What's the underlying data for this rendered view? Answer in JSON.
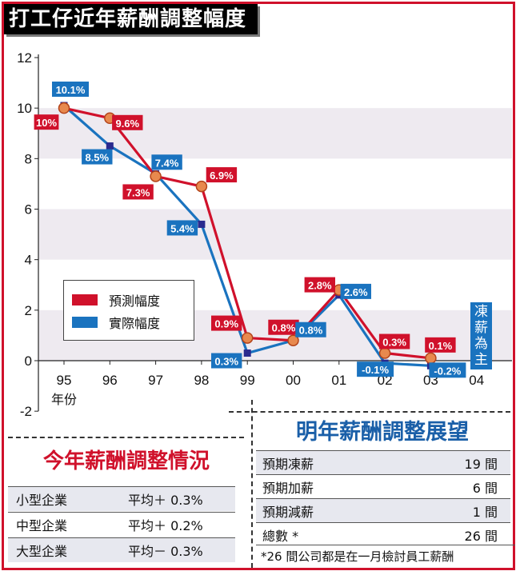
{
  "title": "打工仔近年薪酬調整幅度",
  "chart_data": {
    "type": "line",
    "categories": [
      "95",
      "96",
      "97",
      "98",
      "99",
      "00",
      "01",
      "02",
      "03",
      "04"
    ],
    "xlabel": "年份",
    "ylim": [
      -2,
      12
    ],
    "yticks": [
      -2,
      0,
      2,
      4,
      6,
      8,
      10,
      12
    ],
    "series": [
      {
        "name": "預測幅度",
        "color": "#d0112b",
        "values": [
          10,
          9.6,
          7.3,
          6.9,
          0.9,
          0.8,
          2.8,
          0.3,
          0.1,
          null
        ],
        "labels": [
          "10%",
          "9.6%",
          "7.3%",
          "6.9%",
          "0.9%",
          "0.8%",
          "2.8%",
          "0.3%",
          "0.1%",
          ""
        ]
      },
      {
        "name": "實際幅度",
        "color": "#1a73bf",
        "values": [
          10.1,
          8.5,
          7.4,
          5.4,
          0.3,
          0.8,
          2.6,
          -0.1,
          -0.2,
          null
        ],
        "labels": [
          "10.1%",
          "8.5%",
          "7.4%",
          "5.4%",
          "0.3%",
          "0.8%",
          "2.6%",
          "-0.1%",
          "-0.2%",
          ""
        ]
      }
    ],
    "annotation": "凍薪為主",
    "legend": {
      "position": "bottom-left",
      "items": [
        "預測幅度",
        "實際幅度"
      ]
    }
  },
  "current_year": {
    "title": "今年薪酬調整情況",
    "rows": [
      {
        "label": "小型企業",
        "value": "平均＋ 0.3%"
      },
      {
        "label": "中型企業",
        "value": "平均＋ 0.2%"
      },
      {
        "label": "大型企業",
        "value": "平均－ 0.3%"
      }
    ]
  },
  "outlook": {
    "title": "明年薪酬調整展望",
    "rows": [
      {
        "label": "預期凍薪",
        "value": "19 間"
      },
      {
        "label": "預期加薪",
        "value": "6 間"
      },
      {
        "label": "預期減薪",
        "value": "1 間"
      },
      {
        "label": "總數 *",
        "value": "26 間"
      }
    ],
    "note": "*26 間公司都是在一月檢討員工薪酬"
  }
}
